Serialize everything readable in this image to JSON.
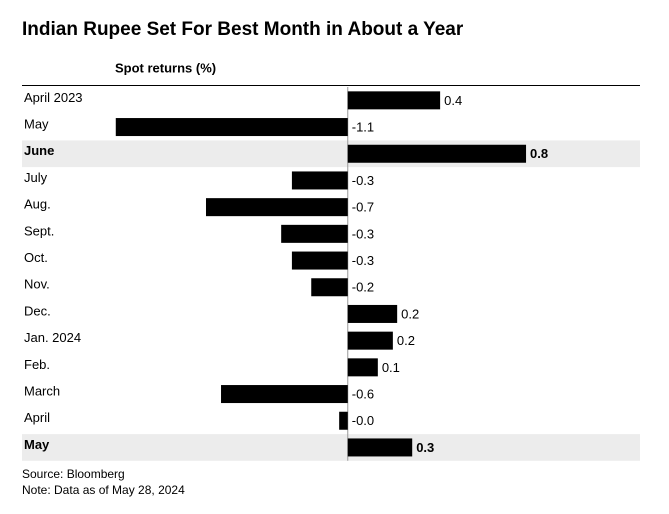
{
  "chart_data": {
    "type": "bar",
    "orientation": "horizontal",
    "title": "Indian Rupee Set For Best Month in About a Year",
    "subtitle": "Spot returns (%)",
    "categories": [
      "April 2023",
      "May",
      "June",
      "July",
      "Aug.",
      "Sept.",
      "Oct.",
      "Nov.",
      "Dec.",
      "Jan. 2024",
      "Feb.",
      "March",
      "April",
      "May"
    ],
    "values": [
      0.43,
      -1.08,
      0.83,
      -0.26,
      -0.66,
      -0.31,
      -0.26,
      -0.17,
      0.23,
      0.21,
      0.14,
      -0.59,
      -0.04,
      0.3
    ],
    "value_labels": [
      "0.4",
      "-1.1",
      "0.8",
      "-0.3",
      "-0.7",
      "-0.3",
      "-0.3",
      "-0.2",
      "0.2",
      "0.2",
      "0.1",
      "-0.6",
      "-0.0",
      "0.3"
    ],
    "highlight": [
      false,
      false,
      true,
      false,
      false,
      false,
      false,
      false,
      false,
      false,
      false,
      false,
      false,
      true
    ],
    "color": "#000000",
    "xlim": [
      -1.2,
      1.3
    ],
    "source": "Source: Bloomberg",
    "note": "Note: Data as of May 28, 2024"
  }
}
